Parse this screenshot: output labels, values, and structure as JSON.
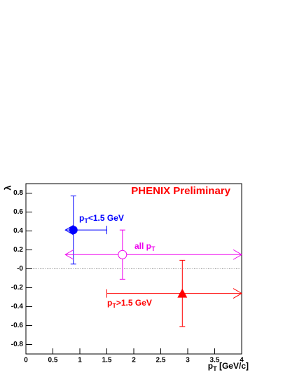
{
  "chart_data": {
    "type": "errorbar",
    "title": "PHENIX Preliminary",
    "title_color": "#ff0000",
    "y_label": "λ",
    "x_label_parts": [
      "p",
      "T",
      " [GeV/c]"
    ],
    "xlim": [
      0,
      4
    ],
    "xticks": [
      0,
      0.5,
      1,
      1.5,
      2,
      2.5,
      3,
      3.5,
      4
    ],
    "ylim": [
      -0.9,
      0.9
    ],
    "yticks": [
      -0.8,
      -0.6,
      -0.4,
      -0.2,
      {
        "value": 0,
        "label": "-0"
      },
      0.2,
      0.4,
      0.6,
      0.8
    ],
    "reference_line": 0,
    "series": [
      {
        "label_parts": [
          "p",
          "T",
          "<1.5 GeV"
        ],
        "color": "#0000ff",
        "marker": "filled-circle",
        "x": 0.88,
        "y": 0.41,
        "y_err": 0.36,
        "x_low": 0.73,
        "x_high": 1.5,
        "x_low_end": "arrow",
        "x_high_end": "bar"
      },
      {
        "label_parts": [
          "all p",
          "T"
        ],
        "color": "#ee00ee",
        "marker": "open-circle",
        "x": 1.79,
        "y": 0.15,
        "y_err": 0.26,
        "x_low": 0.73,
        "x_high": 4,
        "x_low_end": "arrow",
        "x_high_end": "arrow"
      },
      {
        "label_parts": [
          "p",
          "T",
          ">1.5 GeV"
        ],
        "color": "#ff0000",
        "marker": "filled-triangle",
        "x": 2.9,
        "y": -0.26,
        "y_err": 0.35,
        "x_low": 1.5,
        "x_high": 4,
        "x_low_end": "bar",
        "x_high_end": "arrow"
      }
    ]
  }
}
